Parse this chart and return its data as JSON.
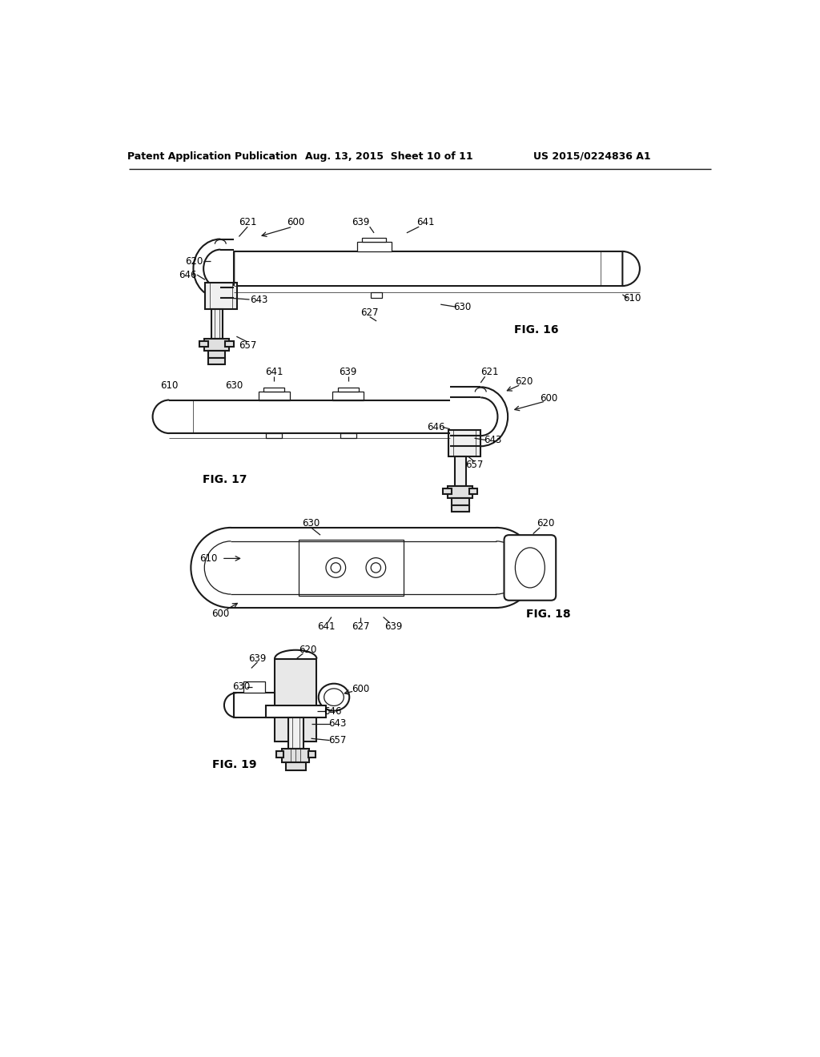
{
  "background_color": "#ffffff",
  "header_left": "Patent Application Publication",
  "header_mid": "Aug. 13, 2015  Sheet 10 of 11",
  "header_right": "US 2015/0224836 A1",
  "fig16_label": "FIG. 16",
  "fig17_label": "FIG. 17",
  "fig18_label": "FIG. 18",
  "fig19_label": "FIG. 19",
  "line_color": "#1a1a1a",
  "text_color": "#000000"
}
